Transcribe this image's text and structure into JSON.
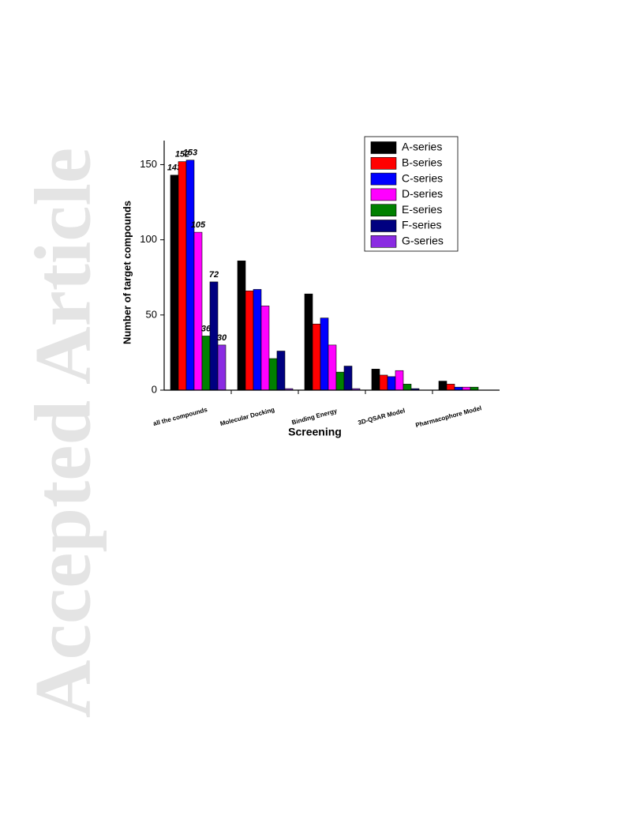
{
  "watermark": "Accepted Article",
  "chart_data": {
    "type": "bar",
    "x_label": "Screening",
    "y_label": "Number of target compounds",
    "categories": [
      "all the compounds",
      "Molecular Docking",
      "Binding Energy",
      "3D-QSAR Model",
      "Pharmacophore Model"
    ],
    "series": [
      {
        "name": "A-series",
        "color": "#000000",
        "values": [
          143,
          86,
          64,
          14,
          6
        ],
        "value_labels": [
          "143",
          null,
          null,
          null,
          null
        ]
      },
      {
        "name": "B-series",
        "color": "#ff0000",
        "values": [
          152,
          66,
          44,
          10,
          4
        ],
        "value_labels": [
          "152",
          null,
          null,
          null,
          null
        ]
      },
      {
        "name": "C-series",
        "color": "#0000ff",
        "values": [
          153,
          67,
          48,
          9,
          2
        ],
        "value_labels": [
          "153",
          null,
          null,
          null,
          null
        ]
      },
      {
        "name": "D-series",
        "color": "#ff00ff",
        "values": [
          105,
          56,
          30,
          13,
          2
        ],
        "value_labels": [
          "105",
          null,
          null,
          null,
          null
        ]
      },
      {
        "name": "E-series",
        "color": "#008000",
        "values": [
          36,
          21,
          12,
          4,
          2
        ],
        "value_labels": [
          "36",
          null,
          null,
          null,
          null
        ]
      },
      {
        "name": "F-series",
        "color": "#000080",
        "values": [
          72,
          26,
          16,
          1,
          0
        ],
        "value_labels": [
          "72",
          null,
          null,
          null,
          null
        ]
      },
      {
        "name": "G-series",
        "color": "#8a2be2",
        "values": [
          30,
          1,
          1,
          0,
          0
        ],
        "value_labels": [
          "30",
          null,
          null,
          null,
          null
        ]
      }
    ],
    "ylim": [
      0,
      166
    ],
    "yticks": [
      0,
      50,
      100,
      150
    ],
    "legend": "upper right"
  }
}
